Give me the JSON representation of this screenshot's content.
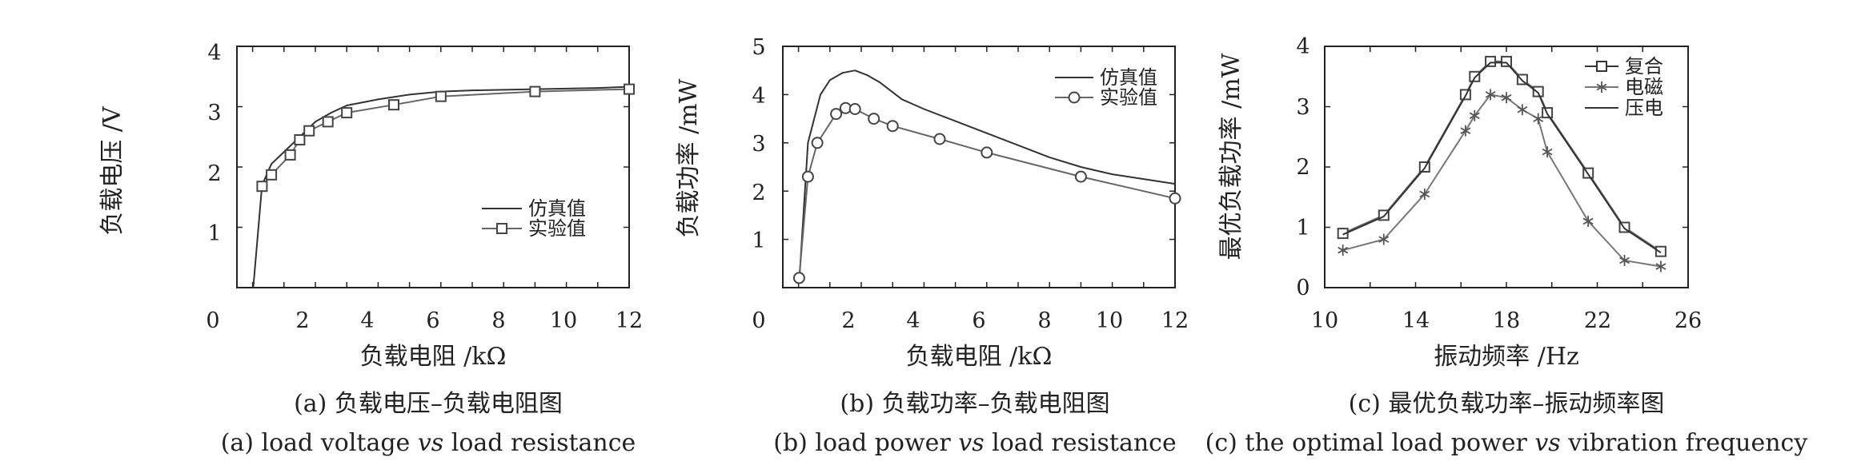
{
  "chart_data": [
    {
      "type": "line",
      "xlabel": "负载电阻 /kΩ",
      "ylabel": "负载电压 /V",
      "xlim": [
        0,
        12
      ],
      "ylim": [
        0,
        4
      ],
      "xticks": [
        "0",
        "2",
        "4",
        "6",
        "8",
        "10",
        "12"
      ],
      "yticks": [
        "1",
        "2",
        "3",
        "4"
      ],
      "caption_cn": "(a) 负载电压–负载电阻图",
      "caption_en_parts": [
        "(a) load voltage ",
        "vs",
        " load resistance"
      ],
      "legend_position": "middle-right",
      "series": [
        {
          "name": "仿真值",
          "marker": "none",
          "x": [
            0.02,
            0.3,
            0.6,
            1.0,
            1.5,
            2.0,
            2.5,
            3.0,
            4.0,
            5.0,
            6.0,
            7.0,
            8.0,
            9.0,
            10.0,
            11.0,
            12.0
          ],
          "y": [
            0.0,
            1.7,
            2.05,
            2.25,
            2.5,
            2.75,
            2.9,
            3.02,
            3.12,
            3.2,
            3.25,
            3.27,
            3.28,
            3.29,
            3.3,
            3.31,
            3.33
          ]
        },
        {
          "name": "实验值",
          "marker": "square",
          "x": [
            0.3,
            0.6,
            1.2,
            1.5,
            1.8,
            2.4,
            3.0,
            4.5,
            6.0,
            9.0,
            12.0
          ],
          "y": [
            1.68,
            1.87,
            2.2,
            2.45,
            2.6,
            2.75,
            2.9,
            3.03,
            3.17,
            3.25,
            3.29
          ]
        }
      ]
    },
    {
      "type": "line",
      "xlabel": "负载电阻 /kΩ",
      "ylabel": "负载功率 /mW",
      "xlim": [
        0,
        12
      ],
      "ylim": [
        0,
        5
      ],
      "xticks": [
        "0",
        "2",
        "4",
        "6",
        "8",
        "10",
        "12"
      ],
      "yticks": [
        "1",
        "2",
        "3",
        "4",
        "5"
      ],
      "caption_cn": "(b) 负载功率–负载电阻图",
      "caption_en_parts": [
        "(b) load power ",
        "vs",
        " load resistance"
      ],
      "legend_position": "top-right",
      "series": [
        {
          "name": "仿真值",
          "marker": "none",
          "x": [
            0.02,
            0.3,
            0.7,
            1.0,
            1.4,
            1.8,
            2.2,
            2.6,
            3.0,
            3.3,
            4.0,
            5.0,
            6.0,
            7.0,
            8.0,
            9.0,
            10.0,
            11.0,
            12.0
          ],
          "y": [
            0.1,
            3.0,
            4.0,
            4.3,
            4.45,
            4.5,
            4.4,
            4.25,
            4.05,
            3.9,
            3.7,
            3.45,
            3.2,
            2.95,
            2.7,
            2.5,
            2.35,
            2.25,
            2.15
          ]
        },
        {
          "name": "实验值",
          "marker": "circle",
          "x": [
            0.02,
            0.3,
            0.6,
            1.2,
            1.5,
            1.8,
            2.4,
            3.0,
            4.5,
            6.0,
            9.0,
            12.0
          ],
          "y": [
            0.2,
            2.3,
            3.0,
            3.6,
            3.72,
            3.7,
            3.5,
            3.35,
            3.08,
            2.8,
            2.3,
            1.85
          ]
        }
      ]
    },
    {
      "type": "line",
      "xlabel": "振动频率 /Hz",
      "ylabel": "最优负载功率 /mW",
      "xlim": [
        10,
        26
      ],
      "ylim": [
        0,
        4
      ],
      "xticks": [
        "10",
        "14",
        "18",
        "22",
        "26"
      ],
      "yticks": [
        "0",
        "1",
        "2",
        "3",
        "4"
      ],
      "caption_cn": "(c) 最优负载功率–振动频率图",
      "caption_en_parts": [
        "(c) the optimal load power ",
        "vs",
        " vibration frequency"
      ],
      "legend_position": "top-right",
      "series": [
        {
          "name": "复合",
          "marker": "square",
          "x": [
            10.8,
            12.6,
            14.4,
            16.2,
            16.6,
            17.3,
            18.0,
            18.7,
            19.4,
            19.8,
            21.6,
            23.2,
            24.8
          ],
          "y": [
            0.9,
            1.2,
            2.0,
            3.2,
            3.5,
            3.75,
            3.75,
            3.45,
            3.25,
            2.9,
            1.9,
            1.0,
            0.6
          ]
        },
        {
          "name": "电磁",
          "marker": "asterisk",
          "x": [
            10.8,
            12.6,
            14.4,
            16.2,
            16.6,
            17.3,
            18.0,
            18.7,
            19.4,
            19.8,
            21.6,
            23.2,
            24.8
          ],
          "y": [
            0.62,
            0.8,
            1.55,
            2.6,
            2.85,
            3.2,
            3.15,
            2.95,
            2.8,
            2.25,
            1.1,
            0.45,
            0.35
          ]
        },
        {
          "name": "压电",
          "marker": "none",
          "x": [
            10.8,
            12.6,
            14.4,
            16.2,
            16.6,
            17.3,
            18.0,
            18.7,
            19.4,
            19.8,
            21.6,
            23.2,
            24.8
          ],
          "y": [
            0.88,
            1.18,
            1.98,
            3.18,
            3.48,
            3.73,
            3.73,
            3.43,
            3.23,
            2.88,
            1.88,
            0.98,
            0.58
          ]
        }
      ]
    }
  ]
}
